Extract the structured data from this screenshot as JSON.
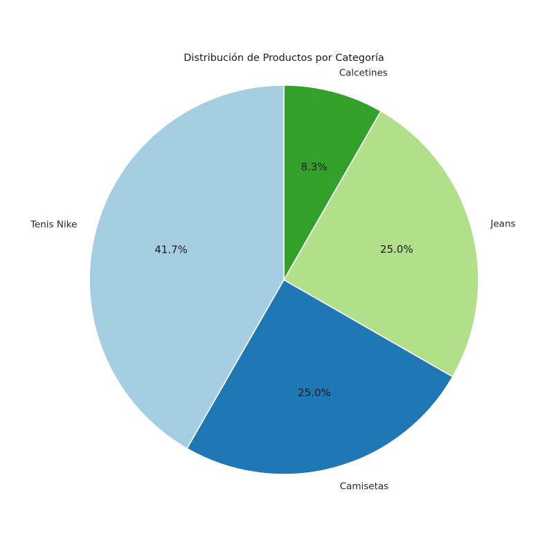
{
  "chart_data": {
    "type": "pie",
    "title": "Distribución de Productos por Categoría",
    "categories": [
      "Tenis Nike",
      "Camisetas",
      "Jeans",
      "Calcetines"
    ],
    "values": [
      41.7,
      25.0,
      25.0,
      8.3
    ],
    "percent_labels": [
      "41.7%",
      "25.0%",
      "25.0%",
      "8.3%"
    ],
    "colors": [
      "#a6cee3",
      "#1f78b4",
      "#b2df8a",
      "#33a02c"
    ],
    "start_angle_deg": 90,
    "direction": "counterclockwise",
    "legend": "none"
  }
}
